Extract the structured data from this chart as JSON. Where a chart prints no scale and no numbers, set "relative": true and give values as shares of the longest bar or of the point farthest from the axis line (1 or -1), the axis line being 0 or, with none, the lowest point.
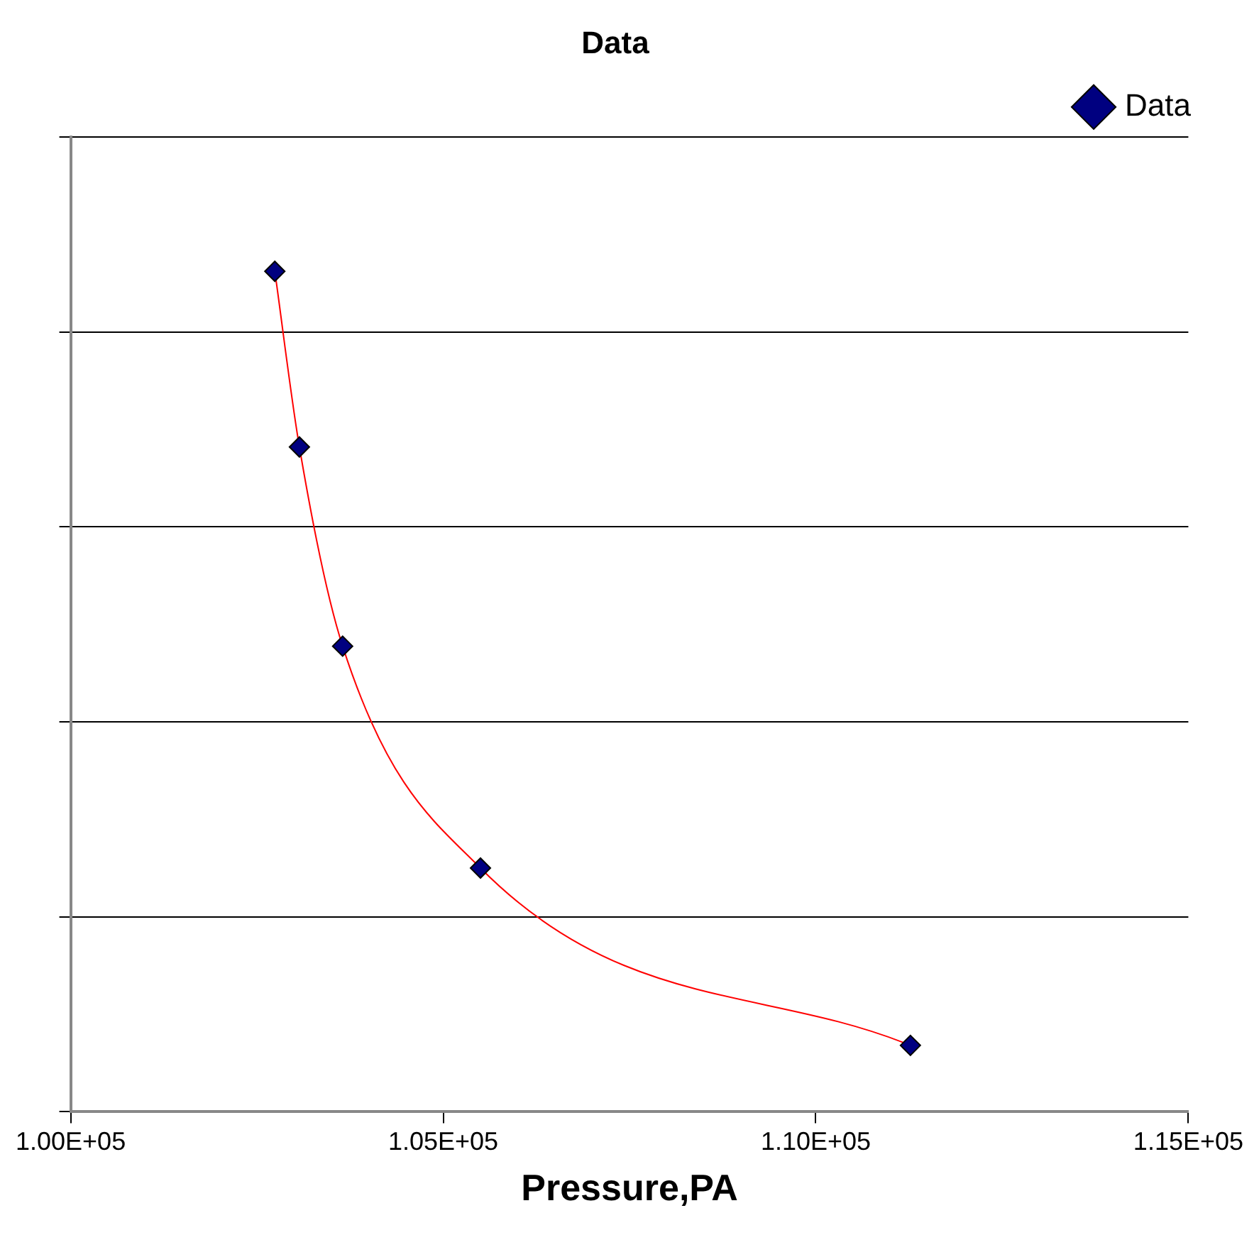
{
  "chart_data": {
    "type": "line",
    "title": "Data",
    "xlabel": "Pressure,PA",
    "relative": true,
    "xlim": [
      100000,
      115000
    ],
    "xticks": [
      {
        "value": 100000,
        "label": "1.00E+05"
      },
      {
        "value": 105000,
        "label": "1.05E+05"
      },
      {
        "value": 110000,
        "label": "1.10E+05"
      },
      {
        "value": 115000,
        "label": "1.15E+05"
      }
    ],
    "series": [
      {
        "name": "Data",
        "color": "#ff0000",
        "colors": [
          "#000080",
          "#000080",
          "#000080",
          "#000080",
          "#000080"
        ],
        "x": [
          102740,
          103070,
          103650,
          105500,
          111270
        ],
        "values": [
          1,
          0.791,
          0.554,
          0.29,
          0.079
        ]
      }
    ],
    "marker": "diamond",
    "line_style": "solid",
    "grid": "y",
    "legend": "top right",
    "tick_labels": "x"
  }
}
